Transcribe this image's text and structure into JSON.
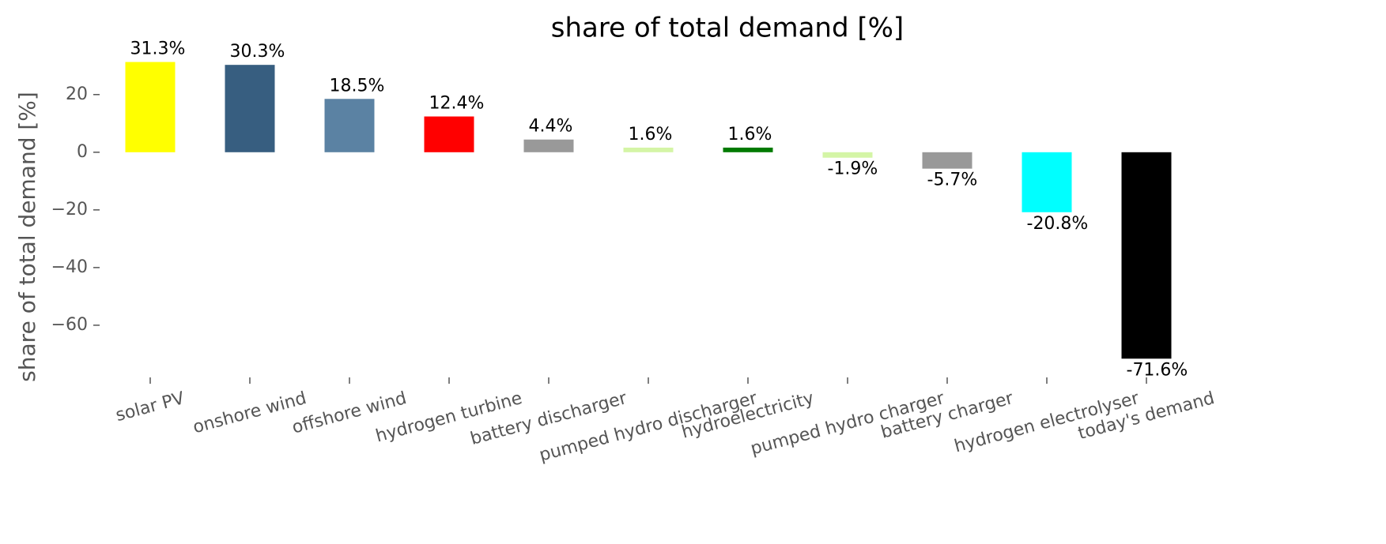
{
  "chart_data": {
    "type": "bar",
    "title": "share of total demand [%]",
    "ylabel": "share of total demand [%]",
    "categories": [
      "solar PV",
      "onshore wind",
      "offshore wind",
      "hydrogen turbine",
      "battery discharger",
      "pumped hydro discharger",
      "hydroelectricity",
      "pumped hydro charger",
      "battery charger",
      "hydrogen electrolyser",
      "today's demand"
    ],
    "values": [
      31.3,
      30.3,
      18.5,
      12.4,
      4.4,
      1.6,
      1.6,
      -1.9,
      -5.7,
      -20.8,
      -71.6
    ],
    "value_labels": [
      "31.3%",
      "30.3%",
      "18.5%",
      "12.4%",
      "4.4%",
      "1.6%",
      "1.6%",
      "-1.9%",
      "-5.7%",
      "-20.8%",
      "-71.6%"
    ],
    "colors": [
      "#ffff00",
      "#375e80",
      "#5b82a3",
      "#ff0000",
      "#999999",
      "#d4f5a6",
      "#007a00",
      "#d4f5a6",
      "#999999",
      "#00ffff",
      "#000000"
    ],
    "ylim": [
      -78.1,
      35
    ],
    "yticks": [
      {
        "value": -60,
        "label": "−60"
      },
      {
        "value": -40,
        "label": "−40"
      },
      {
        "value": -20,
        "label": "−20"
      },
      0,
      20
    ],
    "grid": false
  }
}
